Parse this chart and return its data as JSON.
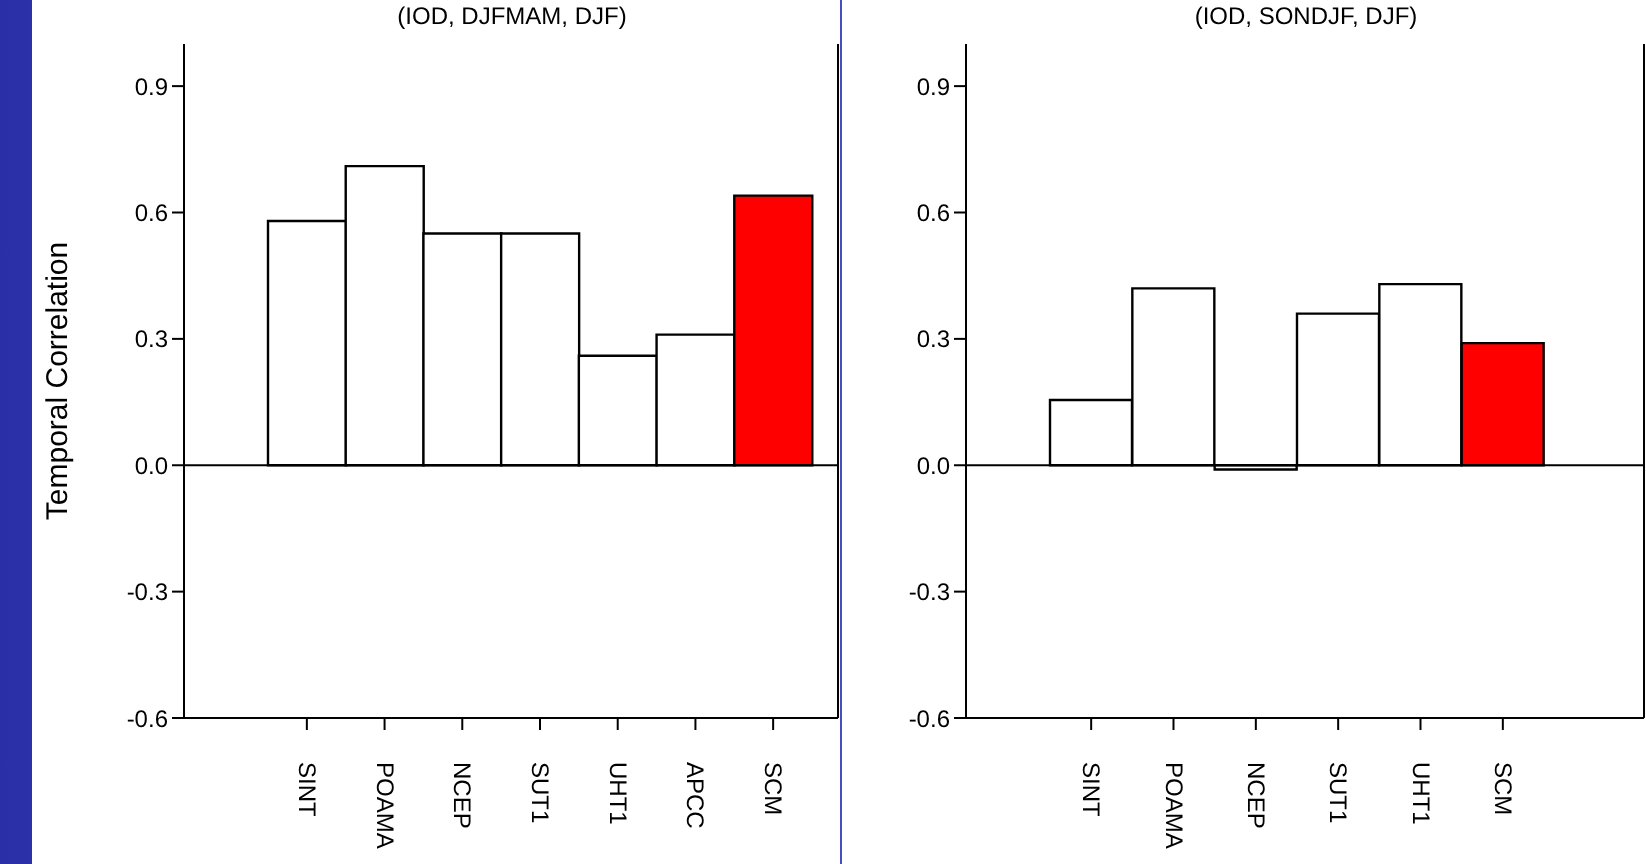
{
  "chart_data": [
    {
      "type": "bar",
      "title": "(IOD, DJFMAM, DJF)",
      "ylabel": "Temporal Correlation",
      "categories": [
        "SINT",
        "POAMA",
        "NCEP",
        "SUT1",
        "UHT1",
        "APCC",
        "SCM"
      ],
      "values": [
        0.58,
        0.71,
        0.55,
        0.55,
        0.26,
        0.31,
        0.64
      ],
      "colors": [
        "#ffffff",
        "#ffffff",
        "#ffffff",
        "#ffffff",
        "#ffffff",
        "#ffffff",
        "#ff0000"
      ],
      "ylim": [
        -0.6,
        1.0
      ],
      "yticks": [
        -0.6,
        -0.3,
        {
          "value": 0,
          "label": "0.0"
        },
        0.3,
        0.6,
        0.9
      ],
      "ref_lines": [
        {
          "axis": "y",
          "value": 0,
          "color": "#000000"
        }
      ],
      "grid": false,
      "legend": false
    },
    {
      "type": "bar",
      "title": "(IOD, SONDJF, DJF)",
      "categories": [
        "SINT",
        "POAMA",
        "NCEP",
        "SUT1",
        "UHT1",
        "SCM"
      ],
      "values": [
        0.155,
        0.42,
        -0.01,
        0.36,
        0.43,
        0.29
      ],
      "colors": [
        "#ffffff",
        "#ffffff",
        "#ffffff",
        "#ffffff",
        "#ffffff",
        "#ff0000"
      ],
      "ylim": [
        -0.6,
        1.0
      ],
      "yticks": [
        -0.6,
        -0.3,
        {
          "value": 0,
          "label": "0.0"
        },
        0.3,
        0.6,
        0.9
      ],
      "ref_lines": [
        {
          "axis": "y",
          "value": 0,
          "color": "#000000"
        }
      ],
      "grid": false,
      "legend": false
    }
  ]
}
